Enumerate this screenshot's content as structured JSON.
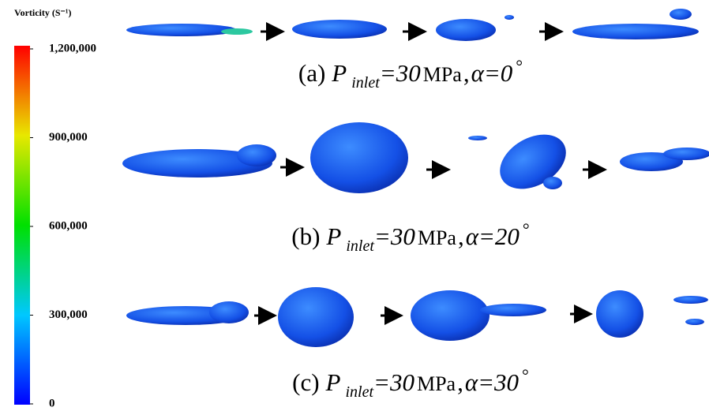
{
  "colorbar": {
    "title": "Vorticity",
    "unit": "(S⁻¹)",
    "range": [
      0,
      1200000
    ],
    "ticks": [
      {
        "value": 0,
        "label": "0"
      },
      {
        "value": 300000,
        "label": "300,000"
      },
      {
        "value": 600000,
        "label": "600,000"
      },
      {
        "value": 900000,
        "label": "900,000"
      },
      {
        "value": 1200000,
        "label": "1,200,000"
      }
    ]
  },
  "captions": [
    {
      "label": "(a)",
      "variable": "P",
      "subscript": "inlet",
      "pressure": "=30",
      "unit": "MPa",
      "separator": ",",
      "angle": "α=0",
      "degree": "°"
    },
    {
      "label": "(b)",
      "variable": "P",
      "subscript": "inlet",
      "pressure": "=30",
      "unit": "MPa",
      "separator": ",",
      "angle": "α=20",
      "degree": "°"
    },
    {
      "label": "(c)",
      "variable": "P",
      "subscript": "inlet",
      "pressure": "=30",
      "unit": "MPa",
      "separator": ",",
      "angle": "α=30",
      "degree": "°"
    }
  ]
}
